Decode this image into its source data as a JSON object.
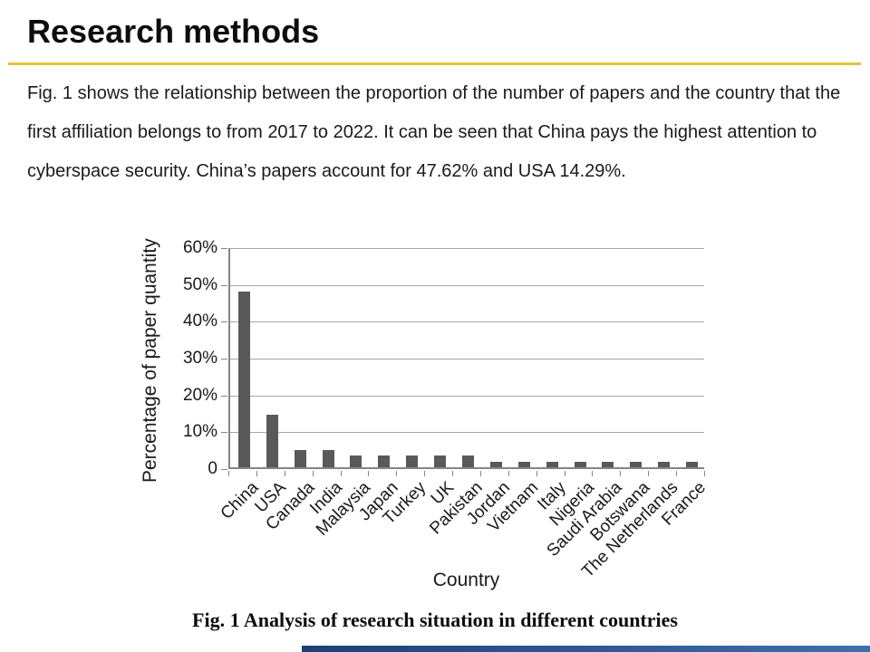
{
  "slide": {
    "title": "Research methods",
    "paragraph": "Fig. 1 shows the relationship between the proportion of the number of papers and the country that the first affiliation belongs to from 2017 to 2022. It can be seen that China pays the highest attention to cyberspace security. China’s papers account for 47.62% and USA 14.29%.",
    "accent_gold": "#E2C23E",
    "caption": "Fig. 1 Analysis of research situation in different countries",
    "footer_bar_color_left": "#1d4077",
    "footer_bar_color_right": "#3f6fae"
  },
  "chart_data": {
    "type": "bar",
    "categories": [
      "China",
      "USA",
      "Canada",
      "India",
      "Malaysia",
      "Japan",
      "Turkey",
      "UK",
      "Pakistan",
      "Jordan",
      "Vietnam",
      "Italy",
      "Nigeria",
      "Saudi Arabia",
      "Botswana",
      "The Netherlands",
      "France"
    ],
    "values": [
      47.62,
      14.29,
      4.76,
      4.76,
      3.17,
      3.17,
      3.17,
      3.17,
      3.17,
      1.59,
      1.59,
      1.59,
      1.59,
      1.59,
      1.59,
      1.59,
      1.59
    ],
    "title": "",
    "xlabel": "Country",
    "ylabel": "Percentage of paper quantity",
    "ylim": [
      0,
      60
    ],
    "yticks": [
      0,
      10,
      20,
      30,
      40,
      50,
      60
    ],
    "ytick_labels": [
      "0",
      "10%",
      "20%",
      "30%",
      "40%",
      "50%",
      "60%"
    ],
    "grid": true,
    "legend": false,
    "bar_color": "#595959",
    "gridline_color": "#a6a6a6",
    "axis_color": "#858585"
  }
}
